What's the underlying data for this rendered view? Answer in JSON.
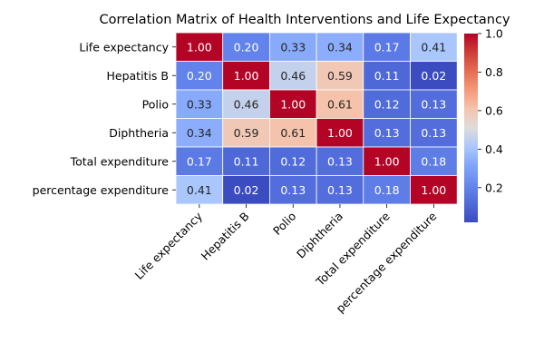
{
  "chart_data": {
    "type": "heatmap",
    "title": "Correlation Matrix of Health Interventions and Life Expectancy",
    "rows": [
      "Life expectancy",
      "Hepatitis B",
      "Polio",
      "Diphtheria",
      "Total expenditure",
      "percentage expenditure"
    ],
    "columns": [
      "Life expectancy",
      "Hepatitis B",
      "Polio",
      "Diphtheria",
      "Total expenditure",
      "percentage expenditure"
    ],
    "values": [
      [
        1.0,
        0.2,
        0.33,
        0.34,
        0.17,
        0.41
      ],
      [
        0.2,
        1.0,
        0.46,
        0.59,
        0.11,
        0.02
      ],
      [
        0.33,
        0.46,
        1.0,
        0.61,
        0.12,
        0.13
      ],
      [
        0.34,
        0.59,
        0.61,
        1.0,
        0.13,
        0.13
      ],
      [
        0.17,
        0.11,
        0.12,
        0.13,
        1.0,
        0.18
      ],
      [
        0.41,
        0.02,
        0.13,
        0.13,
        0.18,
        1.0
      ]
    ],
    "value_format": "0.00",
    "colormap": "coolwarm",
    "colorbar": {
      "range": [
        0.02,
        1.0
      ],
      "ticks": [
        0.2,
        0.4,
        0.6,
        0.8,
        1.0
      ],
      "tick_labels": [
        "0.2",
        "0.4",
        "0.6",
        "0.8",
        "1.0"
      ]
    },
    "grid": true,
    "legend": "colorbar-right",
    "cell_border_color": "#ffffff",
    "text_color_dark": "#262626",
    "text_color_light": "#ffffff"
  }
}
